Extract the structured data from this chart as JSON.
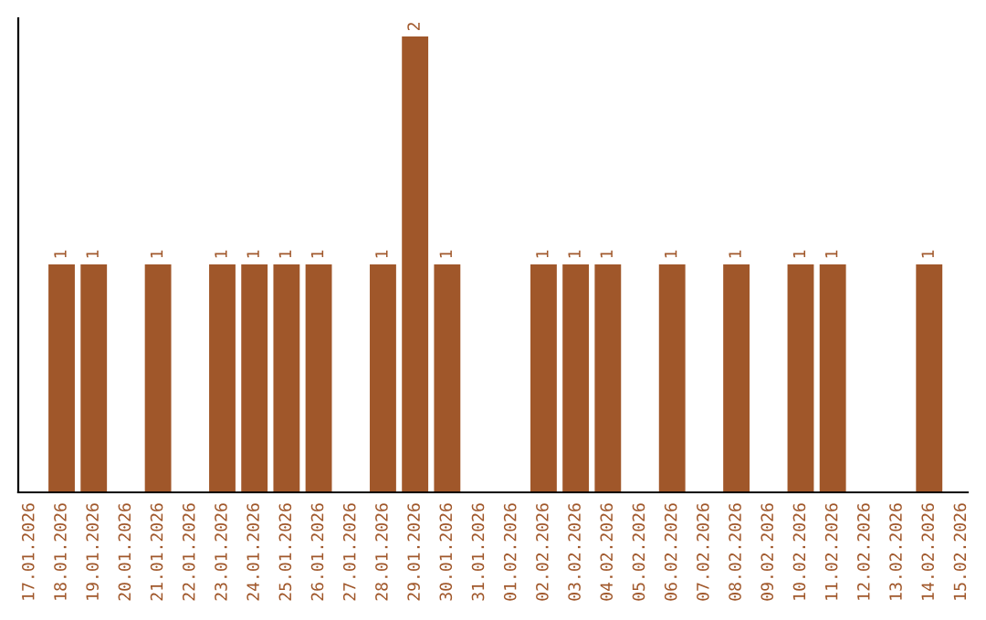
{
  "chart_data": {
    "type": "bar",
    "categories": [
      "17.01.2026",
      "18.01.2026",
      "19.01.2026",
      "20.01.2026",
      "21.01.2026",
      "22.01.2026",
      "23.01.2026",
      "24.01.2026",
      "25.01.2026",
      "26.01.2026",
      "27.01.2026",
      "28.01.2026",
      "29.01.2026",
      "30.01.2026",
      "31.01.2026",
      "01.02.2026",
      "02.02.2026",
      "03.02.2026",
      "04.02.2026",
      "05.02.2026",
      "06.02.2026",
      "07.02.2026",
      "08.02.2026",
      "09.02.2026",
      "10.02.2026",
      "11.02.2026",
      "12.02.2026",
      "13.02.2026",
      "14.02.2026",
      "15.02.2026"
    ],
    "values": [
      0,
      1,
      1,
      0,
      1,
      0,
      1,
      1,
      1,
      1,
      0,
      1,
      2,
      1,
      0,
      0,
      1,
      1,
      1,
      0,
      1,
      0,
      1,
      0,
      1,
      1,
      0,
      0,
      1,
      0
    ],
    "value_labels": [
      null,
      "1",
      "1",
      null,
      "1",
      null,
      "1",
      "1",
      "1",
      "1",
      null,
      "1",
      "2",
      "1",
      null,
      null,
      "1",
      "1",
      "1",
      null,
      "1",
      null,
      "1",
      null,
      "1",
      "1",
      null,
      null,
      "1",
      null
    ],
    "color": "#a0572a",
    "grid": false,
    "tick_labels": "x"
  }
}
